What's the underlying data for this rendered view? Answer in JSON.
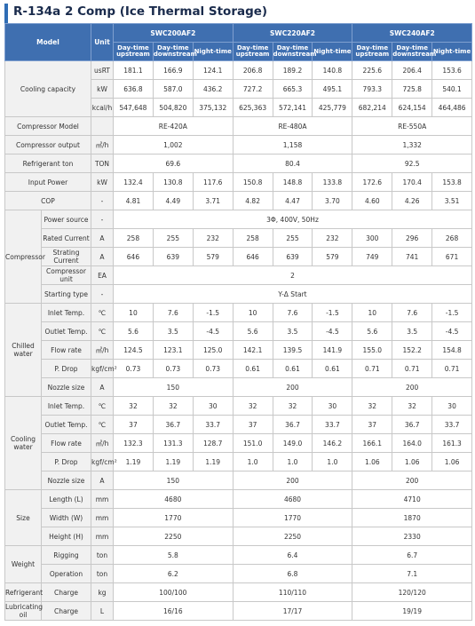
{
  "title": "R-134a 2 Comp (Ice Thermal Storage)",
  "table": {
    "header": {
      "model": "Model",
      "unit": "Unit",
      "models": [
        "SWC200AF2",
        "SWC220AF2",
        "SWC240AF2"
      ],
      "modes": [
        "Day-time upstream",
        "Day-time downstream",
        "Night-time",
        "Day-time upstream",
        "Day-time downstream",
        "Night-time",
        "Day-time upstream",
        "Day-time downstream",
        "Night-time"
      ]
    },
    "sections": [
      {
        "label": "Cooling capacity",
        "rows": [
          {
            "unit": "usRT",
            "values": [
              "181.1",
              "166.9",
              "124.1",
              "206.8",
              "189.2",
              "140.8",
              "225.6",
              "206.4",
              "153.6"
            ]
          },
          {
            "unit": "kW",
            "values": [
              "636.8",
              "587.0",
              "436.2",
              "727.2",
              "665.3",
              "495.1",
              "793.3",
              "725.8",
              "540.1"
            ]
          },
          {
            "unit": "kcal/h",
            "values": [
              "547,648",
              "504,820",
              "375,132",
              "625,363",
              "572,141",
              "425,779",
              "682,214",
              "624,154",
              "464,486"
            ]
          }
        ]
      },
      {
        "label": "Compressor Model",
        "rows": [
          {
            "values": [
              "RE-420A",
              "RE-480A",
              "RE-550A"
            ]
          }
        ]
      },
      {
        "label": "Compressor output",
        "rows": [
          {
            "unit": "㎥/h",
            "values": [
              "1,002",
              "1,158",
              "1,332"
            ]
          }
        ]
      },
      {
        "label": "Refrigerant ton",
        "rows": [
          {
            "unit": "TON",
            "values": [
              "69.6",
              "80.4",
              "92.5"
            ]
          }
        ]
      },
      {
        "label": "Input Power",
        "rows": [
          {
            "unit": "kW",
            "values": [
              "132.4",
              "130.8",
              "117.6",
              "150.8",
              "148.8",
              "133.8",
              "172.6",
              "170.4",
              "153.8"
            ]
          }
        ]
      },
      {
        "label": "COP",
        "rows": [
          {
            "unit": "-",
            "values": [
              "4.81",
              "4.49",
              "3.71",
              "4.82",
              "4.47",
              "3.70",
              "4.60",
              "4.26",
              "3.51"
            ]
          }
        ]
      },
      {
        "group": "Compressor",
        "rows": [
          {
            "item": "Power source",
            "unit": "-",
            "values": [
              "3Φ, 400V, 50Hz"
            ]
          },
          {
            "item": "Rated Current",
            "unit": "A",
            "values": [
              "258",
              "255",
              "232",
              "258",
              "255",
              "232",
              "300",
              "296",
              "268"
            ]
          },
          {
            "item": "Strating Current",
            "unit": "A",
            "values": [
              "646",
              "639",
              "579",
              "646",
              "639",
              "579",
              "749",
              "741",
              "671"
            ]
          },
          {
            "item": "Compressor unit",
            "unit": "EA",
            "values": [
              "2"
            ]
          },
          {
            "item": "Starting type",
            "unit": "-",
            "values": [
              "Y-Δ Start"
            ]
          }
        ]
      },
      {
        "group": "Chilled water",
        "rows": [
          {
            "item": "Inlet Temp.",
            "unit": "℃",
            "values": [
              "10",
              "7.6",
              "-1.5",
              "10",
              "7.6",
              "-1.5",
              "10",
              "7.6",
              "-1.5"
            ]
          },
          {
            "item": "Outlet Temp.",
            "unit": "℃",
            "values": [
              "5.6",
              "3.5",
              "-4.5",
              "5.6",
              "3.5",
              "-4.5",
              "5.6",
              "3.5",
              "-4.5"
            ]
          },
          {
            "item": "Flow rate",
            "unit": "㎥/h",
            "values": [
              "124.5",
              "123.1",
              "125.0",
              "142.1",
              "139.5",
              "141.9",
              "155.0",
              "152.2",
              "154.8"
            ]
          },
          {
            "item": "P. Drop",
            "unit": "kgf/cm²",
            "values": [
              "0.73",
              "0.73",
              "0.73",
              "0.61",
              "0.61",
              "0.61",
              "0.71",
              "0.71",
              "0.71"
            ]
          },
          {
            "item": "Nozzle size",
            "unit": "A",
            "values": [
              "150",
              "200",
              "200"
            ]
          }
        ]
      },
      {
        "group": "Cooling water",
        "rows": [
          {
            "item": "Inlet Temp.",
            "unit": "℃",
            "values": [
              "32",
              "32",
              "30",
              "32",
              "32",
              "30",
              "32",
              "32",
              "30"
            ]
          },
          {
            "item": "Outlet Temp.",
            "unit": "℃",
            "values": [
              "37",
              "36.7",
              "33.7",
              "37",
              "36.7",
              "33.7",
              "37",
              "36.7",
              "33.7"
            ]
          },
          {
            "item": "Flow rate",
            "unit": "㎥/h",
            "values": [
              "132.3",
              "131.3",
              "128.7",
              "151.0",
              "149.0",
              "146.2",
              "166.1",
              "164.0",
              "161.3"
            ]
          },
          {
            "item": "P. Drop",
            "unit": "kgf/cm²",
            "values": [
              "1.19",
              "1.19",
              "1.19",
              "1.0",
              "1.0",
              "1.0",
              "1.06",
              "1.06",
              "1.06"
            ]
          },
          {
            "item": "Nozzle size",
            "unit": "A",
            "values": [
              "150",
              "200",
              "200"
            ]
          }
        ]
      },
      {
        "group": "Size",
        "rows": [
          {
            "item": "Length (L)",
            "unit": "mm",
            "values": [
              "4680",
              "4680",
              "4710"
            ]
          },
          {
            "item": "Width (W)",
            "unit": "mm",
            "values": [
              "1770",
              "1770",
              "1870"
            ]
          },
          {
            "item": "Height (H)",
            "unit": "mm",
            "values": [
              "2250",
              "2250",
              "2330"
            ]
          }
        ]
      },
      {
        "group": "Weight",
        "rows": [
          {
            "item": "Rigging",
            "unit": "ton",
            "values": [
              "5.8",
              "6.4",
              "6.7"
            ]
          },
          {
            "item": "Operation",
            "unit": "ton",
            "values": [
              "6.2",
              "6.8",
              "7.1"
            ]
          }
        ]
      },
      {
        "group": "Refrigerant",
        "rows": [
          {
            "item": "Charge",
            "unit": "kg",
            "values": [
              "100/100",
              "110/110",
              "120/120"
            ]
          }
        ]
      },
      {
        "group": "Lubricating oil",
        "rows": [
          {
            "item": "Charge",
            "unit": "L",
            "values": [
              "16/16",
              "17/17",
              "19/19"
            ]
          }
        ]
      }
    ]
  }
}
